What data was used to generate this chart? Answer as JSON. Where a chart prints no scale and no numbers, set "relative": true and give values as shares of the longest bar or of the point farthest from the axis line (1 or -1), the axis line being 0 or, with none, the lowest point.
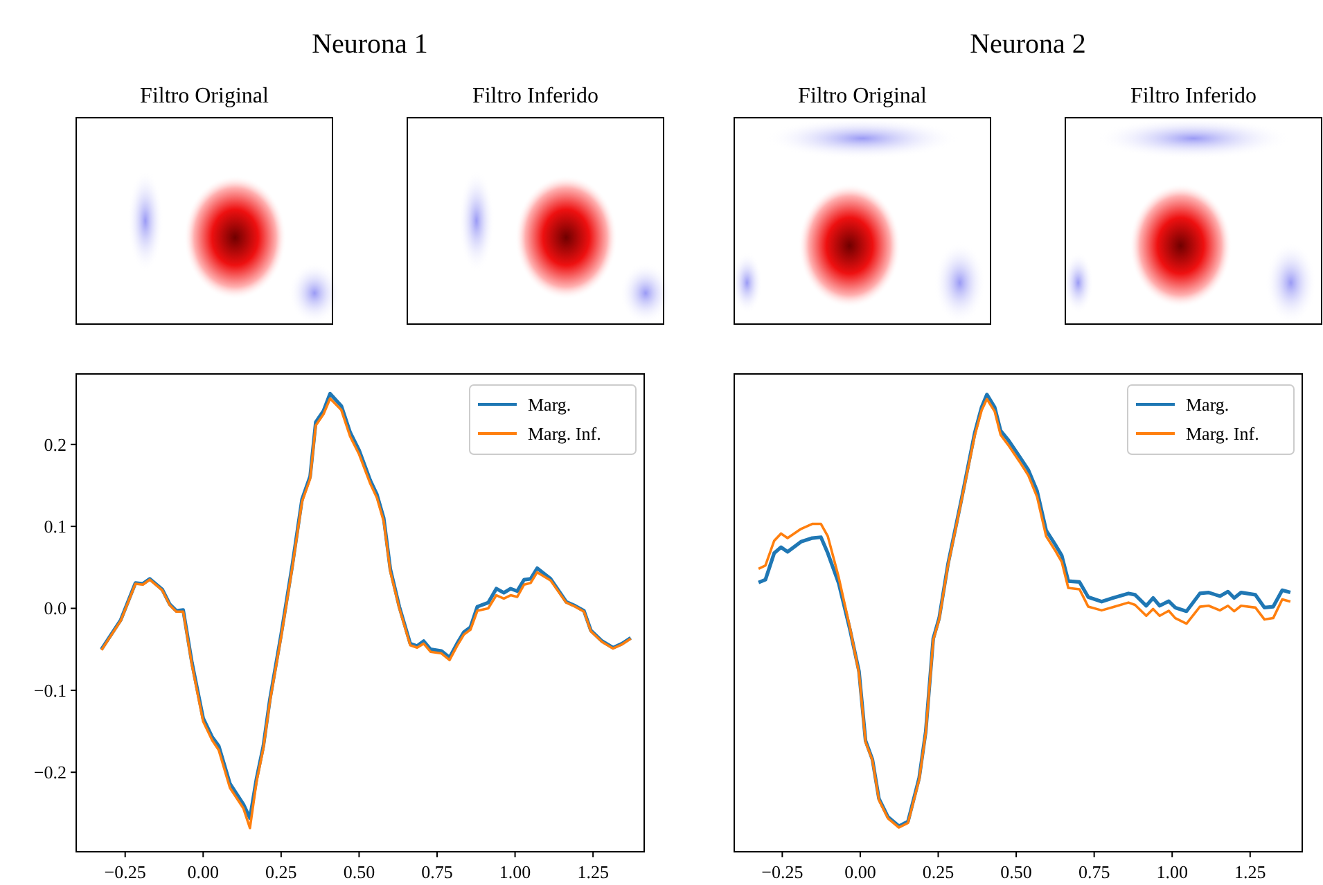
{
  "chart_data": [
    {
      "type": "other",
      "title": "Neurona 1",
      "subtitle": "Filtro Original"
    },
    {
      "type": "other",
      "subtitle": "Filtro Inferido"
    },
    {
      "type": "other",
      "title": "Neurona 2",
      "subtitle": "Filtro Original"
    },
    {
      "type": "other",
      "subtitle": "Filtro Inferido"
    },
    {
      "type": "line",
      "legend": "top right",
      "grid": false,
      "xlim": [
        -0.407,
        1.414
      ],
      "xticks": [
        {
          "value": -0.25,
          "label": "−0.25"
        },
        {
          "value": 0,
          "label": "0.00"
        },
        {
          "value": 0.25,
          "label": "0.25"
        },
        {
          "value": 0.5,
          "label": "0.50"
        },
        {
          "value": 0.75,
          "label": "0.75"
        },
        {
          "value": 1,
          "label": "1.00"
        },
        {
          "value": 1.25,
          "label": "1.25"
        }
      ],
      "ylim": [
        -0.297,
        0.286
      ],
      "yticks": [
        {
          "value": -0.2,
          "label": "−0.2"
        },
        {
          "value": -0.1,
          "label": "−0.1"
        },
        {
          "value": 0,
          "label": "0.0"
        },
        0.1,
        0.2
      ],
      "series": [
        {
          "name": "Marg.",
          "color": "#1f77b4",
          "x": [
            -0.326,
            -0.264,
            -0.217,
            -0.193,
            -0.171,
            -0.131,
            -0.107,
            -0.086,
            -0.064,
            -0.036,
            0.0,
            0.029,
            0.05,
            0.086,
            0.129,
            0.15,
            0.171,
            0.193,
            0.214,
            0.25,
            0.286,
            0.317,
            0.343,
            0.361,
            0.386,
            0.407,
            0.443,
            0.471,
            0.5,
            0.536,
            0.557,
            0.579,
            0.6,
            0.629,
            0.664,
            0.686,
            0.707,
            0.729,
            0.764,
            0.79,
            0.814,
            0.836,
            0.857,
            0.879,
            0.914,
            0.94,
            0.964,
            0.986,
            1.007,
            1.029,
            1.05,
            1.071,
            1.114,
            1.164,
            1.193,
            1.221,
            1.243,
            1.279,
            1.314,
            1.343,
            1.371
          ],
          "values": [
            -0.05,
            -0.014,
            0.031,
            0.03,
            0.036,
            0.023,
            0.005,
            -0.003,
            -0.002,
            -0.066,
            -0.134,
            -0.157,
            -0.168,
            -0.214,
            -0.239,
            -0.256,
            -0.208,
            -0.168,
            -0.111,
            -0.032,
            0.053,
            0.133,
            0.161,
            0.227,
            0.241,
            0.262,
            0.247,
            0.215,
            0.193,
            0.156,
            0.139,
            0.11,
            0.048,
            0.002,
            -0.043,
            -0.046,
            -0.04,
            -0.05,
            -0.052,
            -0.06,
            -0.043,
            -0.029,
            -0.023,
            0.002,
            0.007,
            0.024,
            0.019,
            0.024,
            0.021,
            0.035,
            0.036,
            0.049,
            0.036,
            0.008,
            0.003,
            -0.003,
            -0.027,
            -0.04,
            -0.048,
            -0.043,
            -0.036
          ]
        },
        {
          "name": "Marg. Inf.",
          "color": "#ff7f0e",
          "x": [
            -0.326,
            -0.264,
            -0.217,
            -0.193,
            -0.171,
            -0.131,
            -0.107,
            -0.086,
            -0.064,
            -0.036,
            0.0,
            0.029,
            0.05,
            0.086,
            0.129,
            0.15,
            0.171,
            0.193,
            0.214,
            0.25,
            0.286,
            0.317,
            0.343,
            0.361,
            0.386,
            0.407,
            0.443,
            0.471,
            0.5,
            0.536,
            0.557,
            0.579,
            0.6,
            0.629,
            0.664,
            0.686,
            0.707,
            0.729,
            0.764,
            0.79,
            0.814,
            0.836,
            0.857,
            0.879,
            0.914,
            0.94,
            0.964,
            0.986,
            1.007,
            1.029,
            1.05,
            1.071,
            1.114,
            1.164,
            1.193,
            1.221,
            1.243,
            1.279,
            1.314,
            1.343,
            1.371
          ],
          "values": [
            -0.051,
            -0.015,
            0.03,
            0.029,
            0.035,
            0.022,
            0.004,
            -0.004,
            -0.004,
            -0.069,
            -0.138,
            -0.161,
            -0.173,
            -0.219,
            -0.244,
            -0.268,
            -0.212,
            -0.171,
            -0.114,
            -0.035,
            0.05,
            0.13,
            0.158,
            0.223,
            0.237,
            0.256,
            0.242,
            0.21,
            0.188,
            0.152,
            0.135,
            0.106,
            0.045,
            0.0,
            -0.045,
            -0.048,
            -0.043,
            -0.053,
            -0.055,
            -0.063,
            -0.046,
            -0.032,
            -0.026,
            -0.003,
            0.0,
            0.016,
            0.012,
            0.016,
            0.014,
            0.029,
            0.031,
            0.044,
            0.034,
            0.007,
            0.002,
            -0.004,
            -0.028,
            -0.041,
            -0.049,
            -0.044,
            -0.037
          ]
        }
      ]
    },
    {
      "type": "line",
      "legend": "top right",
      "grid": false,
      "relative": true,
      "xlim": [
        -0.404,
        1.417
      ],
      "xticks": [
        {
          "value": -0.25,
          "label": "−0.25"
        },
        {
          "value": 0,
          "label": "0.00"
        },
        {
          "value": 0.25,
          "label": "0.25"
        },
        {
          "value": 0.5,
          "label": "0.50"
        },
        {
          "value": 0.75,
          "label": "0.75"
        },
        {
          "value": 1,
          "label": "1.00"
        },
        {
          "value": 1.25,
          "label": "1.25"
        }
      ],
      "series": [
        {
          "name": "Marg.",
          "color": "#1f77b4",
          "x": [
            -0.326,
            -0.304,
            -0.276,
            -0.254,
            -0.233,
            -0.19,
            -0.154,
            -0.126,
            -0.104,
            -0.069,
            -0.033,
            -0.004,
            0.017,
            0.039,
            0.06,
            0.089,
            0.124,
            0.153,
            0.189,
            0.21,
            0.234,
            0.253,
            0.281,
            0.324,
            0.367,
            0.389,
            0.406,
            0.431,
            0.45,
            0.474,
            0.51,
            0.539,
            0.567,
            0.596,
            0.624,
            0.646,
            0.667,
            0.703,
            0.731,
            0.774,
            0.81,
            0.86,
            0.881,
            0.917,
            0.939,
            0.96,
            0.989,
            1.01,
            1.046,
            1.089,
            1.117,
            1.153,
            1.179,
            1.199,
            1.221,
            1.267,
            1.296,
            1.324,
            1.353,
            1.379
          ],
          "values": [
            0.589,
            0.595,
            0.653,
            0.666,
            0.656,
            0.678,
            0.686,
            0.688,
            0.653,
            0.587,
            0.486,
            0.395,
            0.243,
            0.202,
            0.116,
            0.076,
            0.056,
            0.066,
            0.162,
            0.263,
            0.466,
            0.511,
            0.628,
            0.769,
            0.916,
            0.972,
            1.0,
            0.972,
            0.921,
            0.901,
            0.865,
            0.835,
            0.789,
            0.703,
            0.673,
            0.648,
            0.592,
            0.59,
            0.557,
            0.547,
            0.555,
            0.565,
            0.562,
            0.538,
            0.555,
            0.538,
            0.548,
            0.534,
            0.526,
            0.565,
            0.567,
            0.559,
            0.569,
            0.555,
            0.567,
            0.562,
            0.534,
            0.536,
            0.572,
            0.567
          ]
        },
        {
          "name": "Marg. Inf.",
          "color": "#ff7f0e",
          "x": [
            -0.326,
            -0.304,
            -0.276,
            -0.254,
            -0.233,
            -0.19,
            -0.154,
            -0.126,
            -0.104,
            -0.069,
            -0.033,
            -0.004,
            0.017,
            0.039,
            0.06,
            0.089,
            0.124,
            0.153,
            0.189,
            0.21,
            0.234,
            0.253,
            0.281,
            0.324,
            0.367,
            0.389,
            0.406,
            0.431,
            0.45,
            0.474,
            0.51,
            0.539,
            0.567,
            0.596,
            0.624,
            0.646,
            0.667,
            0.703,
            0.731,
            0.774,
            0.81,
            0.86,
            0.881,
            0.917,
            0.939,
            0.96,
            0.989,
            1.01,
            1.046,
            1.089,
            1.117,
            1.153,
            1.179,
            1.199,
            1.221,
            1.267,
            1.296,
            1.324,
            1.353,
            1.379
          ],
          "values": [
            0.619,
            0.626,
            0.68,
            0.696,
            0.686,
            0.706,
            0.717,
            0.717,
            0.69,
            0.6,
            0.49,
            0.39,
            0.24,
            0.2,
            0.113,
            0.073,
            0.053,
            0.063,
            0.158,
            0.26,
            0.463,
            0.508,
            0.625,
            0.766,
            0.91,
            0.965,
            0.99,
            0.963,
            0.912,
            0.89,
            0.854,
            0.823,
            0.776,
            0.69,
            0.66,
            0.634,
            0.577,
            0.574,
            0.536,
            0.528,
            0.535,
            0.545,
            0.54,
            0.516,
            0.531,
            0.516,
            0.527,
            0.511,
            0.499,
            0.536,
            0.538,
            0.528,
            0.538,
            0.526,
            0.538,
            0.534,
            0.508,
            0.511,
            0.552,
            0.547
          ]
        }
      ]
    }
  ]
}
